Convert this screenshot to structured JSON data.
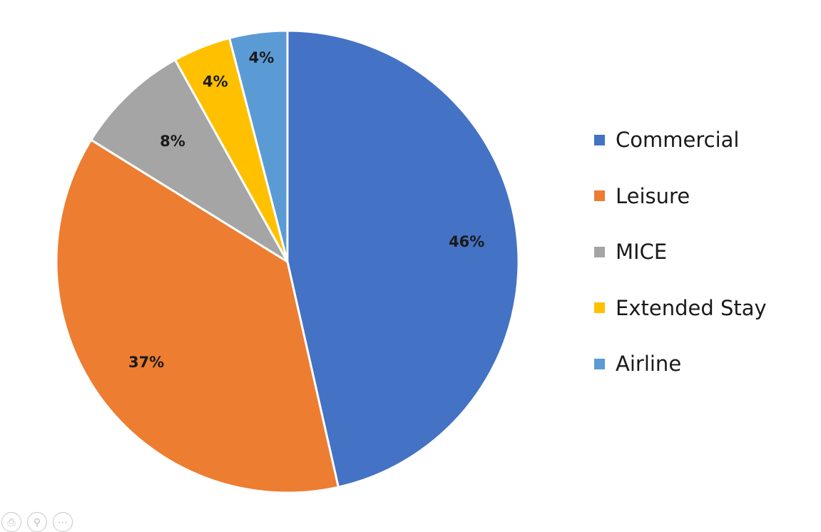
{
  "chart_data": {
    "type": "pie",
    "categories": [
      "Commercial",
      "Leisure",
      "MICE",
      "Extended Stay",
      "Airline"
    ],
    "values": [
      46,
      37,
      8,
      4,
      4
    ],
    "data_labels": [
      "46%",
      "37%",
      "8%",
      "4%",
      "4%"
    ],
    "colors": [
      "#4472C4",
      "#ED7D31",
      "#A5A5A5",
      "#FFC000",
      "#5B9BD5"
    ],
    "title": "",
    "legend": "right",
    "start_angle": "12 o'clock",
    "direction": "clockwise"
  },
  "footer": {
    "icons": [
      "print-icon",
      "search-icon",
      "more-icon"
    ]
  }
}
